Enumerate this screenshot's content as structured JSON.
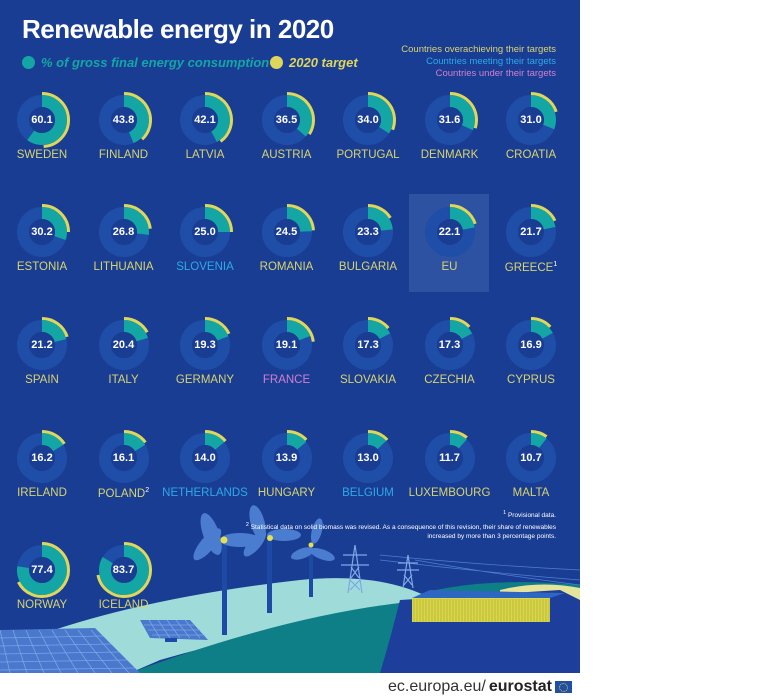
{
  "title": "Renewable energy in 2020",
  "legend": {
    "share_label": "% of gross final energy consumption",
    "target_label": "2020 target"
  },
  "status_legend": {
    "over": "Countries overachieving their targets",
    "meet": "Countries meeting their targets",
    "under": "Countries under their targets"
  },
  "colors": {
    "background": "#1a3d94",
    "ring_track": "#1f4ea8",
    "ring_inner": "#1a3d94",
    "share": "#13a6a4",
    "target": "#dfd65a",
    "over": "#d8d46e",
    "meet": "#2ea9e8",
    "under": "#d27fd0"
  },
  "chart_data": {
    "type": "donut-grid",
    "title": "Renewable energy in 2020",
    "unit": "% of gross final energy consumption",
    "series": [
      {
        "name": "% of gross final energy consumption"
      },
      {
        "name": "2020 target"
      }
    ],
    "countries": [
      {
        "name": "SWEDEN",
        "value": 60.1,
        "target": 49,
        "status": "over",
        "note": ""
      },
      {
        "name": "FINLAND",
        "value": 43.8,
        "target": 38,
        "status": "over",
        "note": ""
      },
      {
        "name": "LATVIA",
        "value": 42.1,
        "target": 40,
        "status": "over",
        "note": ""
      },
      {
        "name": "AUSTRIA",
        "value": 36.5,
        "target": 34,
        "status": "over",
        "note": ""
      },
      {
        "name": "PORTUGAL",
        "value": 34.0,
        "target": 31,
        "status": "over",
        "note": ""
      },
      {
        "name": "DENMARK",
        "value": 31.6,
        "target": 30,
        "status": "over",
        "note": ""
      },
      {
        "name": "CROATIA",
        "value": 31.0,
        "target": 20,
        "status": "over",
        "note": ""
      },
      {
        "name": "ESTONIA",
        "value": 30.2,
        "target": 25,
        "status": "over",
        "note": ""
      },
      {
        "name": "LITHUANIA",
        "value": 26.8,
        "target": 23,
        "status": "over",
        "note": ""
      },
      {
        "name": "SLOVENIA",
        "value": 25.0,
        "target": 25,
        "status": "meet",
        "note": ""
      },
      {
        "name": "ROMANIA",
        "value": 24.5,
        "target": 24,
        "status": "over",
        "note": ""
      },
      {
        "name": "BULGARIA",
        "value": 23.3,
        "target": 16,
        "status": "over",
        "note": ""
      },
      {
        "name": "EU",
        "value": 22.1,
        "target": 20,
        "status": "over",
        "note": "",
        "highlight": true
      },
      {
        "name": "GREECE",
        "value": 21.7,
        "target": 18,
        "status": "over",
        "note": "1"
      },
      {
        "name": "SPAIN",
        "value": 21.2,
        "target": 20,
        "status": "over",
        "note": ""
      },
      {
        "name": "ITALY",
        "value": 20.4,
        "target": 17,
        "status": "over",
        "note": ""
      },
      {
        "name": "GERMANY",
        "value": 19.3,
        "target": 18,
        "status": "over",
        "note": ""
      },
      {
        "name": "FRANCE",
        "value": 19.1,
        "target": 23,
        "status": "under",
        "note": ""
      },
      {
        "name": "SLOVAKIA",
        "value": 17.3,
        "target": 14,
        "status": "over",
        "note": ""
      },
      {
        "name": "CZECHIA",
        "value": 17.3,
        "target": 13,
        "status": "over",
        "note": ""
      },
      {
        "name": "CYPRUS",
        "value": 16.9,
        "target": 13,
        "status": "over",
        "note": ""
      },
      {
        "name": "IRELAND",
        "value": 16.2,
        "target": 16,
        "status": "over",
        "note": ""
      },
      {
        "name": "POLAND",
        "value": 16.1,
        "target": 15,
        "status": "over",
        "note": "2"
      },
      {
        "name": "NETHERLANDS",
        "value": 14.0,
        "target": 14,
        "status": "meet",
        "note": ""
      },
      {
        "name": "HUNGARY",
        "value": 13.9,
        "target": 13,
        "status": "over",
        "note": ""
      },
      {
        "name": "BELGIUM",
        "value": 13.0,
        "target": 13,
        "status": "meet",
        "note": ""
      },
      {
        "name": "LUXEMBOURG",
        "value": 11.7,
        "target": 11,
        "status": "over",
        "note": ""
      },
      {
        "name": "MALTA",
        "value": 10.7,
        "target": 10,
        "status": "over",
        "note": ""
      },
      {
        "name": "NORWAY",
        "value": 77.4,
        "target": 67.5,
        "status": "over",
        "note": ""
      },
      {
        "name": "ICELAND",
        "value": 83.7,
        "target": 72,
        "status": "over",
        "note": ""
      }
    ],
    "scale_max": 100
  },
  "footnotes": {
    "fn1": "Provisional data.",
    "fn1_mark": "1",
    "fn2": "Statistical data on solid biomass was revised. As a consequence of this revision, their share of renewables increased by more than 3 percentage points.",
    "fn2_mark": "2"
  },
  "source": {
    "prefix": "ec.europa.eu/",
    "brand": "eurostat"
  }
}
